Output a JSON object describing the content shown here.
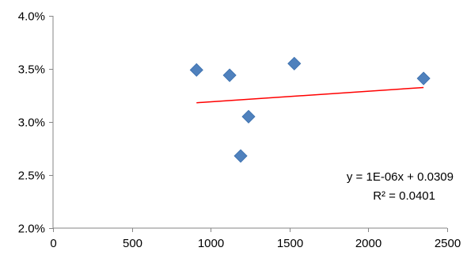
{
  "chart_data": {
    "type": "scatter",
    "title": "",
    "xlabel": "",
    "ylabel": "",
    "xlim": [
      0,
      2500
    ],
    "ylim": [
      0.02,
      0.04
    ],
    "x_ticks": [
      0,
      500,
      1000,
      1500,
      2000,
      2500
    ],
    "x_tick_labels": [
      "0",
      "500",
      "1000",
      "1500",
      "2000",
      "2500"
    ],
    "y_ticks": [
      0.02,
      0.025,
      0.03,
      0.035,
      0.04
    ],
    "y_tick_labels": [
      "2.0%",
      "2.5%",
      "3.0%",
      "3.5%",
      "4.0%"
    ],
    "grid": false,
    "legend": "none",
    "series": [
      {
        "x": [
          910,
          1120,
          1190,
          1240,
          1530,
          2350
        ],
        "y": [
          0.0349,
          0.0344,
          0.0268,
          0.0305,
          0.0355,
          0.0341
        ],
        "marker": "diamond",
        "color": "#4F81BD"
      }
    ],
    "trendline": {
      "type": "linear",
      "slope": 1e-06,
      "intercept": 0.0309,
      "x_start": 910,
      "x_end": 2350,
      "color": "#FF0000",
      "equation_label": "y = 1E-06x + 0.0309",
      "r2_label": "R² = 0.0401"
    }
  }
}
